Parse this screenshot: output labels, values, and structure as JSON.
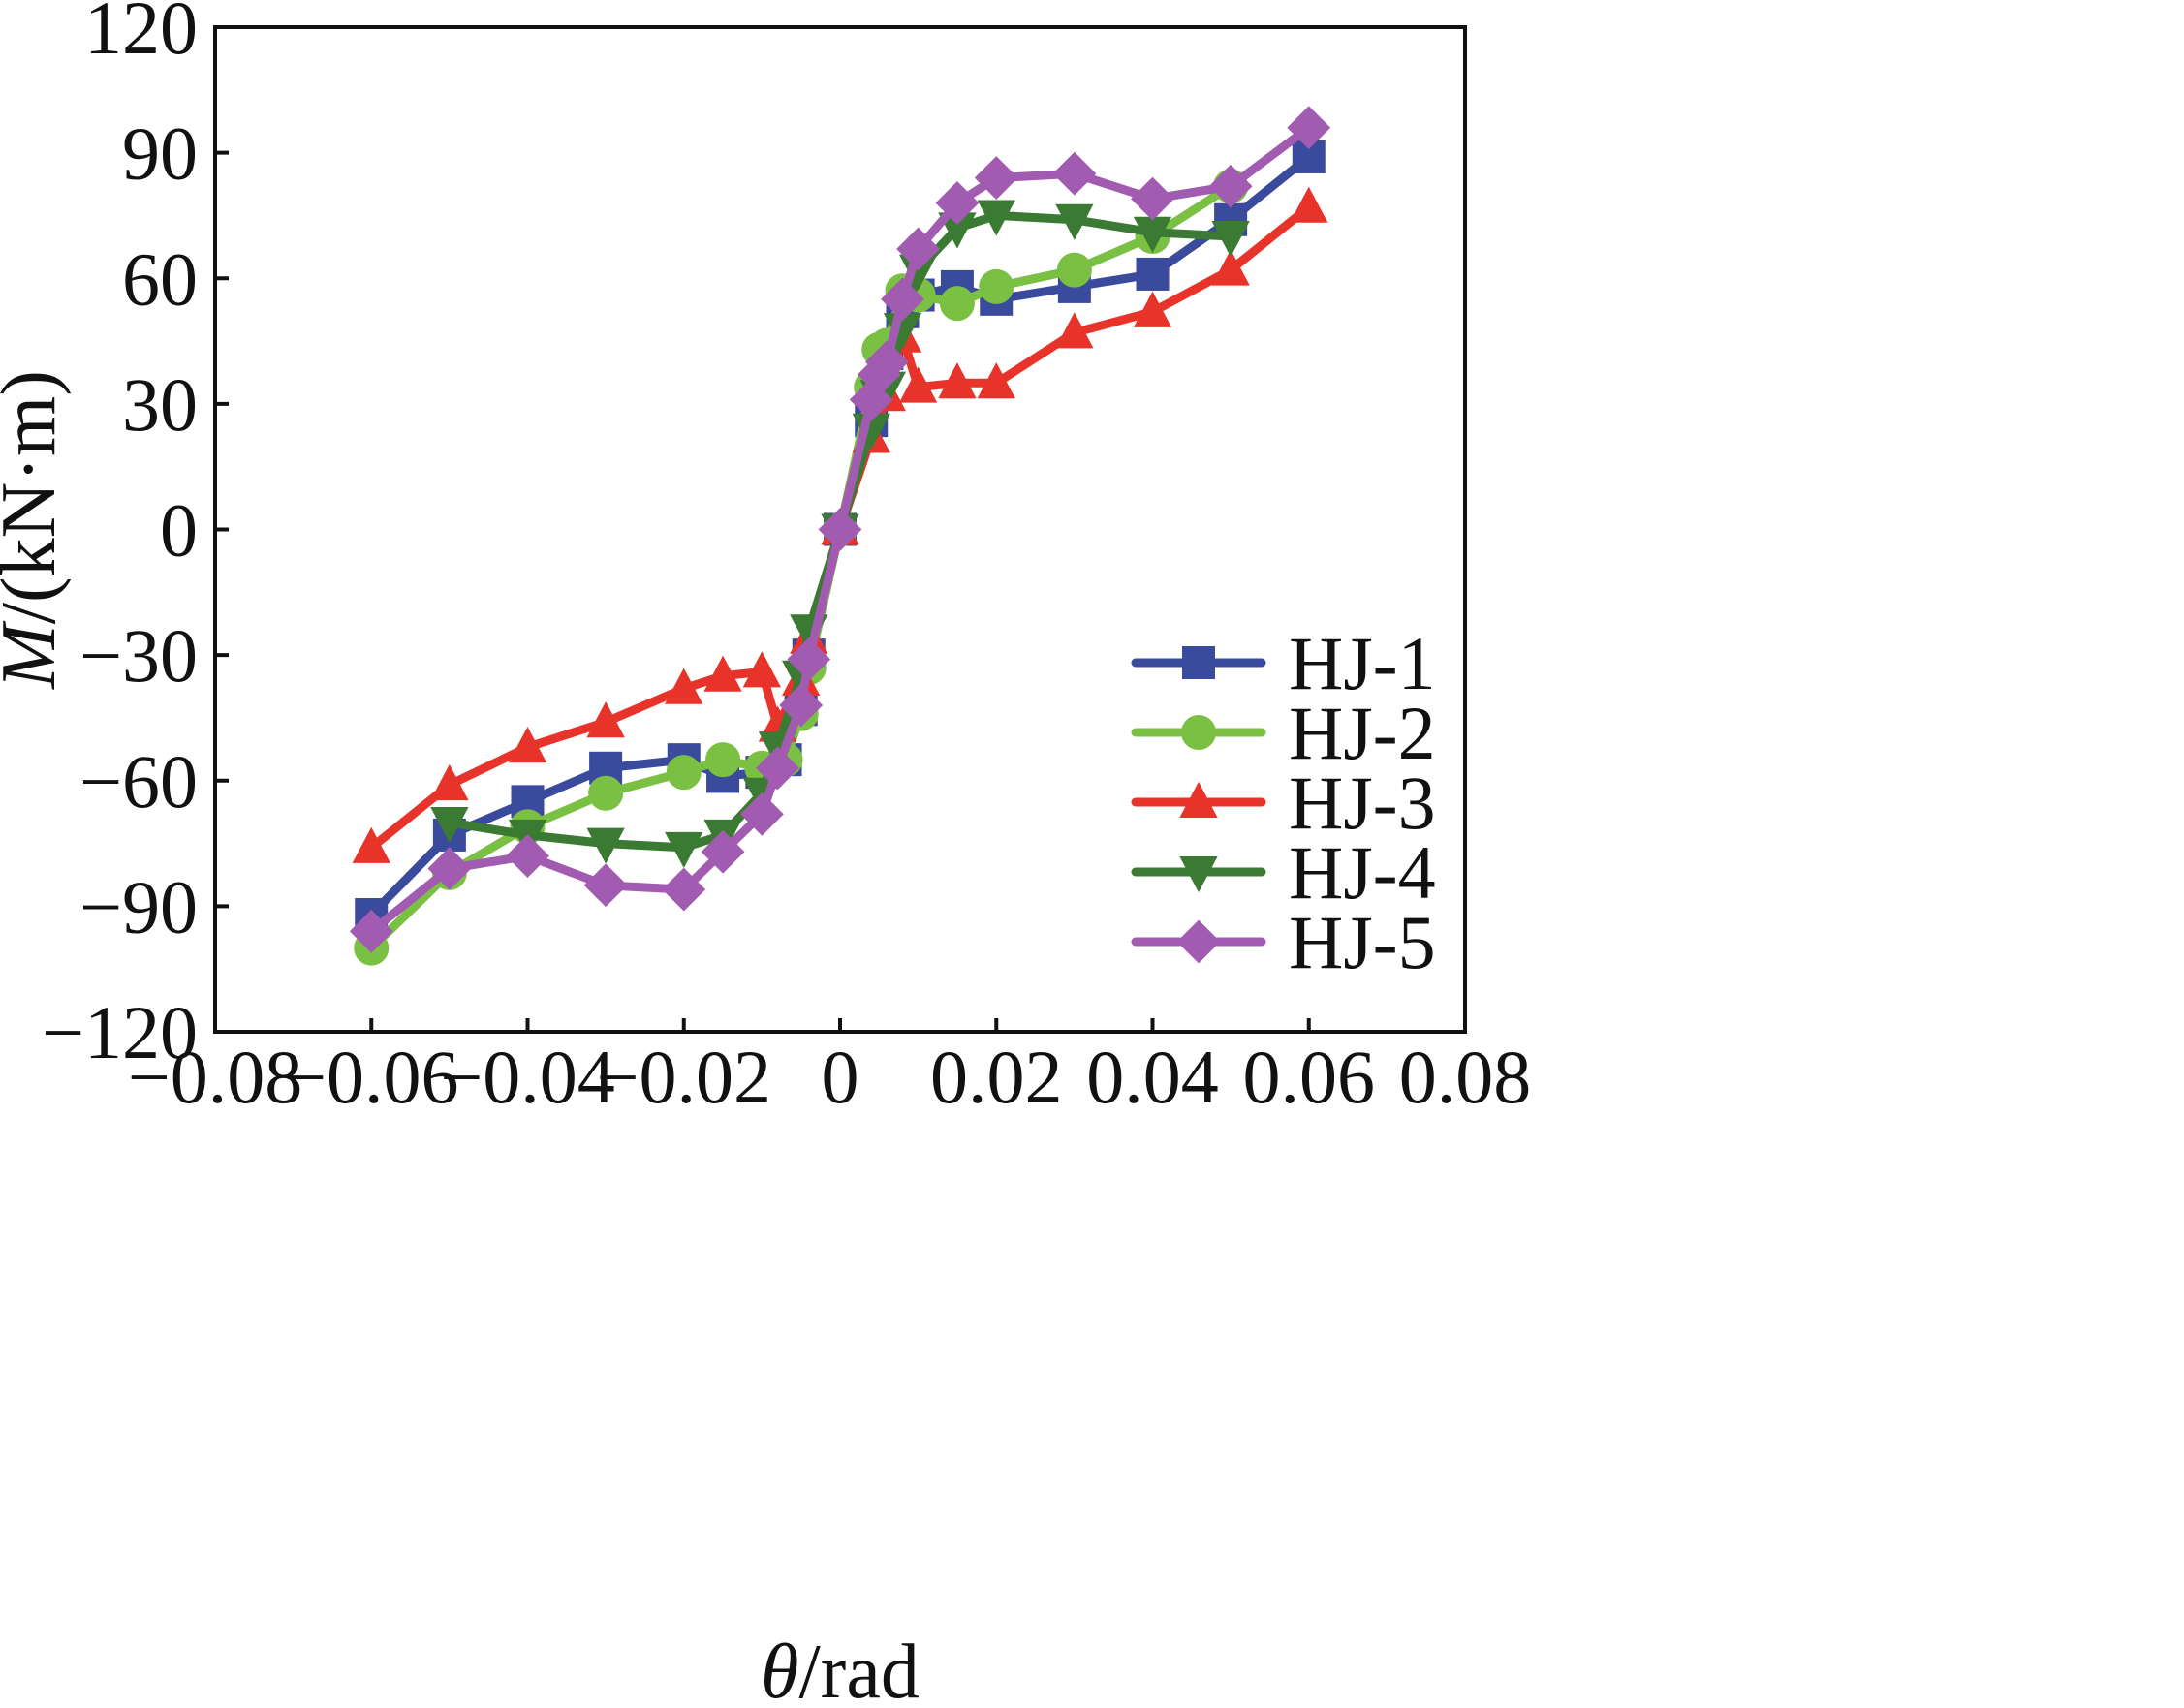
{
  "chart_data": {
    "type": "line",
    "xlabel": {
      "symbol": "θ",
      "unit": "/rad"
    },
    "ylabel": {
      "symbol": "M",
      "unit": "/(kN·m)"
    },
    "xlim": [
      -0.08,
      0.08
    ],
    "ylim": [
      -120,
      120
    ],
    "xticks": [
      -0.08,
      -0.06,
      -0.04,
      -0.02,
      0,
      0.02,
      0.04,
      0.06,
      0.08
    ],
    "xtick_labels": [
      "−0.08",
      "−0.06",
      "−0.04",
      "−0.02",
      "0",
      "0.02",
      "0.04",
      "0.06",
      "0.08"
    ],
    "yticks": [
      120,
      90,
      60,
      30,
      0,
      -30,
      -60,
      -90,
      -120
    ],
    "ytick_labels": [
      "120",
      "90",
      "60",
      "30",
      "0",
      "−30",
      "−60",
      "−90",
      "−120"
    ],
    "grid": false,
    "legend_position": "bottom-right",
    "series": [
      {
        "name": "HJ-1",
        "color": "#3a4a9c",
        "marker": "square",
        "points": [
          [
            -0.06,
            -92
          ],
          [
            -0.05,
            -73
          ],
          [
            -0.04,
            -65
          ],
          [
            -0.03,
            -57
          ],
          [
            -0.02,
            -55
          ],
          [
            -0.015,
            -59
          ],
          [
            -0.01,
            -58
          ],
          [
            -0.007,
            -55
          ],
          [
            -0.005,
            -43
          ],
          [
            -0.004,
            -30
          ],
          [
            0,
            0
          ],
          [
            0.004,
            26
          ],
          [
            0.005,
            34
          ],
          [
            0.006,
            42
          ],
          [
            0.008,
            52
          ],
          [
            0.01,
            56
          ],
          [
            0.015,
            58
          ],
          [
            0.02,
            55
          ],
          [
            0.03,
            58
          ],
          [
            0.04,
            61
          ],
          [
            0.05,
            74
          ],
          [
            0.06,
            89
          ]
        ]
      },
      {
        "name": "HJ-2",
        "color": "#7ac043",
        "marker": "circle",
        "points": [
          [
            -0.06,
            -100
          ],
          [
            -0.05,
            -82
          ],
          [
            -0.04,
            -71
          ],
          [
            -0.03,
            -63
          ],
          [
            -0.02,
            -58
          ],
          [
            -0.015,
            -55
          ],
          [
            -0.01,
            -57
          ],
          [
            -0.007,
            -55
          ],
          [
            -0.005,
            -44
          ],
          [
            -0.004,
            -33
          ],
          [
            0,
            0
          ],
          [
            0.004,
            34
          ],
          [
            0.005,
            43
          ],
          [
            0.006,
            44
          ],
          [
            0.008,
            57
          ],
          [
            0.01,
            56
          ],
          [
            0.015,
            54
          ],
          [
            0.02,
            58
          ],
          [
            0.03,
            62
          ],
          [
            0.04,
            70
          ],
          [
            0.05,
            82
          ]
        ]
      },
      {
        "name": "HJ-3",
        "color": "#e8332a",
        "marker": "triangle-up",
        "points": [
          [
            -0.06,
            -76
          ],
          [
            -0.05,
            -61
          ],
          [
            -0.04,
            -52
          ],
          [
            -0.03,
            -46
          ],
          [
            -0.02,
            -38
          ],
          [
            -0.015,
            -35
          ],
          [
            -0.01,
            -34
          ],
          [
            -0.008,
            -47
          ],
          [
            -0.005,
            -36
          ],
          [
            -0.004,
            -26
          ],
          [
            0,
            0
          ],
          [
            0.004,
            22
          ],
          [
            0.006,
            32
          ],
          [
            0.008,
            46
          ],
          [
            0.01,
            34
          ],
          [
            0.015,
            35
          ],
          [
            0.02,
            35
          ],
          [
            0.03,
            47
          ],
          [
            0.04,
            52
          ],
          [
            0.05,
            62
          ],
          [
            0.06,
            77
          ]
        ]
      },
      {
        "name": "HJ-4",
        "color": "#3a7a32",
        "marker": "triangle-down",
        "points": [
          [
            -0.05,
            -70
          ],
          [
            -0.04,
            -73
          ],
          [
            -0.03,
            -75
          ],
          [
            -0.02,
            -76
          ],
          [
            -0.015,
            -73
          ],
          [
            -0.01,
            -63
          ],
          [
            -0.008,
            -52
          ],
          [
            -0.005,
            -35
          ],
          [
            -0.004,
            -24
          ],
          [
            0,
            0
          ],
          [
            0.004,
            24
          ],
          [
            0.005,
            32
          ],
          [
            0.006,
            34
          ],
          [
            0.008,
            48
          ],
          [
            0.01,
            62
          ],
          [
            0.015,
            72
          ],
          [
            0.02,
            75
          ],
          [
            0.03,
            74
          ],
          [
            0.04,
            71
          ],
          [
            0.05,
            70
          ]
        ]
      },
      {
        "name": "HJ-5",
        "color": "#a15bb0",
        "marker": "diamond",
        "points": [
          [
            -0.06,
            -96
          ],
          [
            -0.05,
            -81
          ],
          [
            -0.04,
            -78
          ],
          [
            -0.03,
            -85
          ],
          [
            -0.02,
            -86
          ],
          [
            -0.015,
            -77
          ],
          [
            -0.01,
            -68
          ],
          [
            -0.008,
            -57
          ],
          [
            -0.005,
            -42
          ],
          [
            -0.004,
            -31
          ],
          [
            0,
            0
          ],
          [
            0.004,
            31
          ],
          [
            0.005,
            37
          ],
          [
            0.006,
            40
          ],
          [
            0.008,
            55
          ],
          [
            0.01,
            67
          ],
          [
            0.015,
            78
          ],
          [
            0.02,
            84
          ],
          [
            0.03,
            85
          ],
          [
            0.04,
            79
          ],
          [
            0.05,
            82
          ],
          [
            0.06,
            96
          ]
        ]
      }
    ]
  }
}
